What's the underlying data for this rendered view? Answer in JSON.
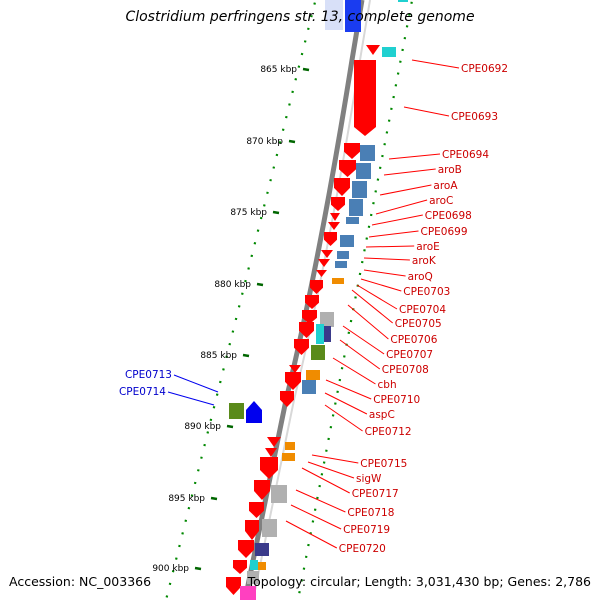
{
  "title": "Clostridium perfringens str. 13, complete genome",
  "footer": {
    "accession": "Accession: NC_003366",
    "summary": "Topology: circular; Length: 3,031,430 bp; Genes: 2,786"
  },
  "colors": {
    "backbone": "#808080",
    "cds": "#ff0000",
    "label_red": "#cc0000",
    "label_blue": "#0000cc",
    "tick": "#006600",
    "steel_blue": "#4a7fb5",
    "cyan": "#20d0d0",
    "olive": "#5a8a1a",
    "orange": "#f08c00",
    "grey": "#b0b0b0",
    "navy": "#3a3a8a",
    "magenta": "#ff40c0"
  },
  "scale_ticks": [
    "865 kbp",
    "870 kbp",
    "875 kbp",
    "880 kbp",
    "885 kbp",
    "890 kbp",
    "895 kbp",
    "900 kbp"
  ],
  "gene_labels_right": [
    "CPE0692",
    "CPE0693",
    "CPE0694",
    "aroB",
    "aroA",
    "aroC",
    "CPE0698",
    "CPE0699",
    "aroE",
    "aroK",
    "aroQ",
    "CPE0703",
    "CPE0704",
    "CPE0705",
    "CPE0706",
    "CPE0707",
    "CPE0708",
    "cbh",
    "CPE0710",
    "aspC",
    "CPE0712",
    "CPE0715",
    "sigW",
    "CPE0717",
    "CPE0718",
    "CPE0719",
    "CPE0720"
  ],
  "gene_labels_left": [
    "CPE0713",
    "CPE0714"
  ]
}
